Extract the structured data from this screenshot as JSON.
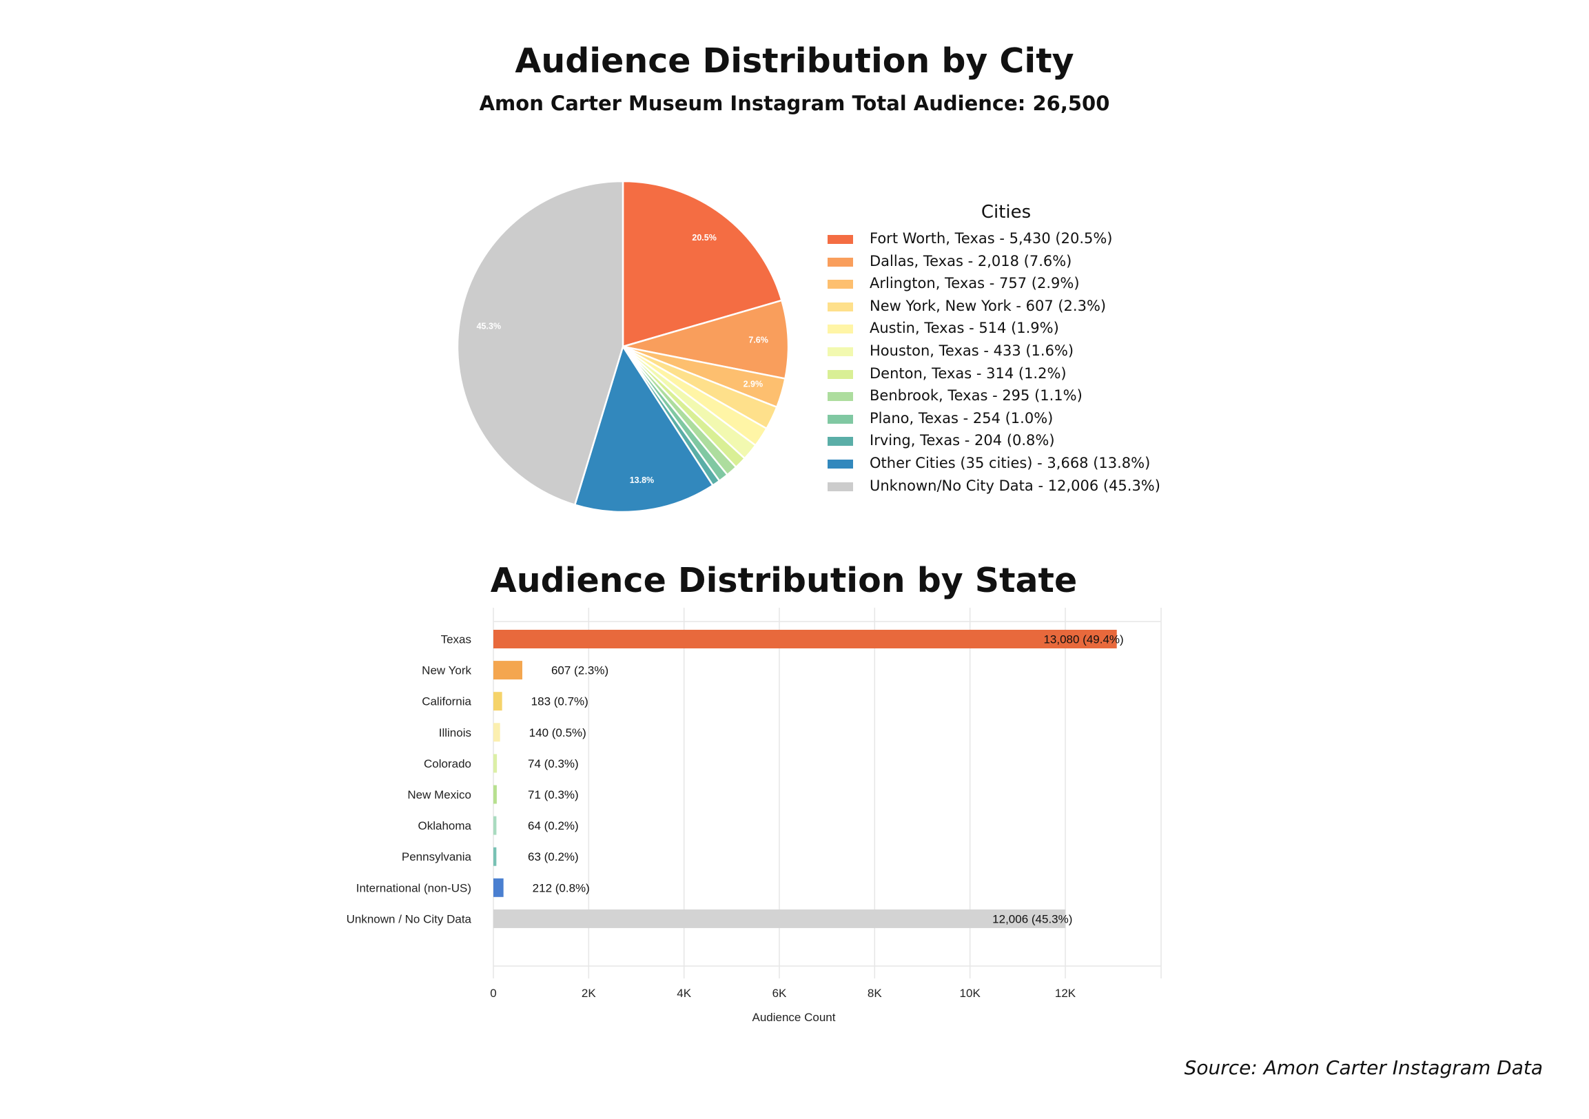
{
  "pie_title": "Audience Distribution by City",
  "pie_subtitle": "Amon Carter Museum Instagram Total Audience: 26,500",
  "bar_title": "Audience Distribution by State",
  "source": "Source: Amon Carter Instagram Data",
  "chart_data": [
    {
      "type": "pie",
      "title": "Audience Distribution by City",
      "subtitle": "Amon Carter Museum Instagram Total Audience: 26,500",
      "legend_title": "Cities",
      "legend_placement": "right",
      "start_angle": "12 o'clock, clockwise",
      "slices": [
        {
          "name": "Fort Worth, Texas",
          "value": 5430,
          "pct": 20.5,
          "legend": "Fort Worth, Texas - 5,430 (20.5%)",
          "label": "20.5%",
          "color": "#f46d43"
        },
        {
          "name": "Dallas, Texas",
          "value": 2018,
          "pct": 7.6,
          "legend": "Dallas, Texas - 2,018 (7.6%)",
          "label": "7.6%",
          "color": "#f99e5c"
        },
        {
          "name": "Arlington, Texas",
          "value": 757,
          "pct": 2.9,
          "legend": "Arlington, Texas - 757 (2.9%)",
          "label": "2.9%",
          "color": "#fdbf6f"
        },
        {
          "name": "New York, New York",
          "value": 607,
          "pct": 2.3,
          "legend": "New York, New York - 607 (2.3%)",
          "label": "",
          "color": "#fee08b"
        },
        {
          "name": "Austin, Texas",
          "value": 514,
          "pct": 1.9,
          "legend": "Austin, Texas - 514 (1.9%)",
          "label": "",
          "color": "#fff5a6"
        },
        {
          "name": "Houston, Texas",
          "value": 433,
          "pct": 1.6,
          "legend": "Houston, Texas - 433 (1.6%)",
          "label": "",
          "color": "#f2f9b0"
        },
        {
          "name": "Denton, Texas",
          "value": 314,
          "pct": 1.2,
          "legend": "Denton, Texas - 314 (1.2%)",
          "label": "",
          "color": "#d9ef95"
        },
        {
          "name": "Benbrook, Texas",
          "value": 295,
          "pct": 1.1,
          "legend": "Benbrook, Texas - 295 (1.1%)",
          "label": "",
          "color": "#addd9e"
        },
        {
          "name": "Plano, Texas",
          "value": 254,
          "pct": 1.0,
          "legend": "Plano, Texas - 254 (1.0%)",
          "label": "",
          "color": "#80c8a2"
        },
        {
          "name": "Irving, Texas",
          "value": 204,
          "pct": 0.8,
          "legend": "Irving, Texas - 204 (0.8%)",
          "label": "",
          "color": "#5aaea7"
        },
        {
          "name": "Other Cities (35 cities)",
          "value": 3668,
          "pct": 13.8,
          "legend": "Other Cities (35 cities) - 3,668 (13.8%)",
          "label": "13.8%",
          "color": "#3288bd"
        },
        {
          "name": "Unknown/No City Data",
          "value": 12006,
          "pct": 45.3,
          "legend": "Unknown/No City Data - 12,006 (45.3%)",
          "label": "45.3%",
          "color": "#cccccc"
        }
      ]
    },
    {
      "type": "bar",
      "orientation": "horizontal",
      "title": "Audience Distribution by State",
      "xlabel": "Audience Count",
      "ylabel": "",
      "xlim": [
        0,
        14000
      ],
      "xticks": [
        0,
        2000,
        4000,
        6000,
        8000,
        10000,
        12000
      ],
      "xtick_labels": [
        "0",
        "2K",
        "4K",
        "6K",
        "8K",
        "10K",
        "12K"
      ],
      "grid": true,
      "categories": [
        "Texas",
        "New York",
        "California",
        "Illinois",
        "Colorado",
        "New Mexico",
        "Oklahoma",
        "Pennsylvania",
        "International (non-US)",
        "Unknown / No City Data"
      ],
      "values": [
        13080,
        607,
        183,
        140,
        74,
        71,
        64,
        63,
        212,
        12006
      ],
      "data_labels": [
        "13,080 (49.4%)",
        "607 (2.3%)",
        "183 (0.7%)",
        "140 (0.5%)",
        "74 (0.3%)",
        "71 (0.3%)",
        "64 (0.2%)",
        "63 (0.2%)",
        "212 (0.8%)",
        "12,006 (45.3%)"
      ],
      "colors": [
        "#e8693c",
        "#f4a64f",
        "#f5d36a",
        "#fbefb0",
        "#dcefa6",
        "#b7e08f",
        "#a9dbbf",
        "#78c1b4",
        "#4a7fd0",
        "#d3d3d3"
      ]
    }
  ]
}
